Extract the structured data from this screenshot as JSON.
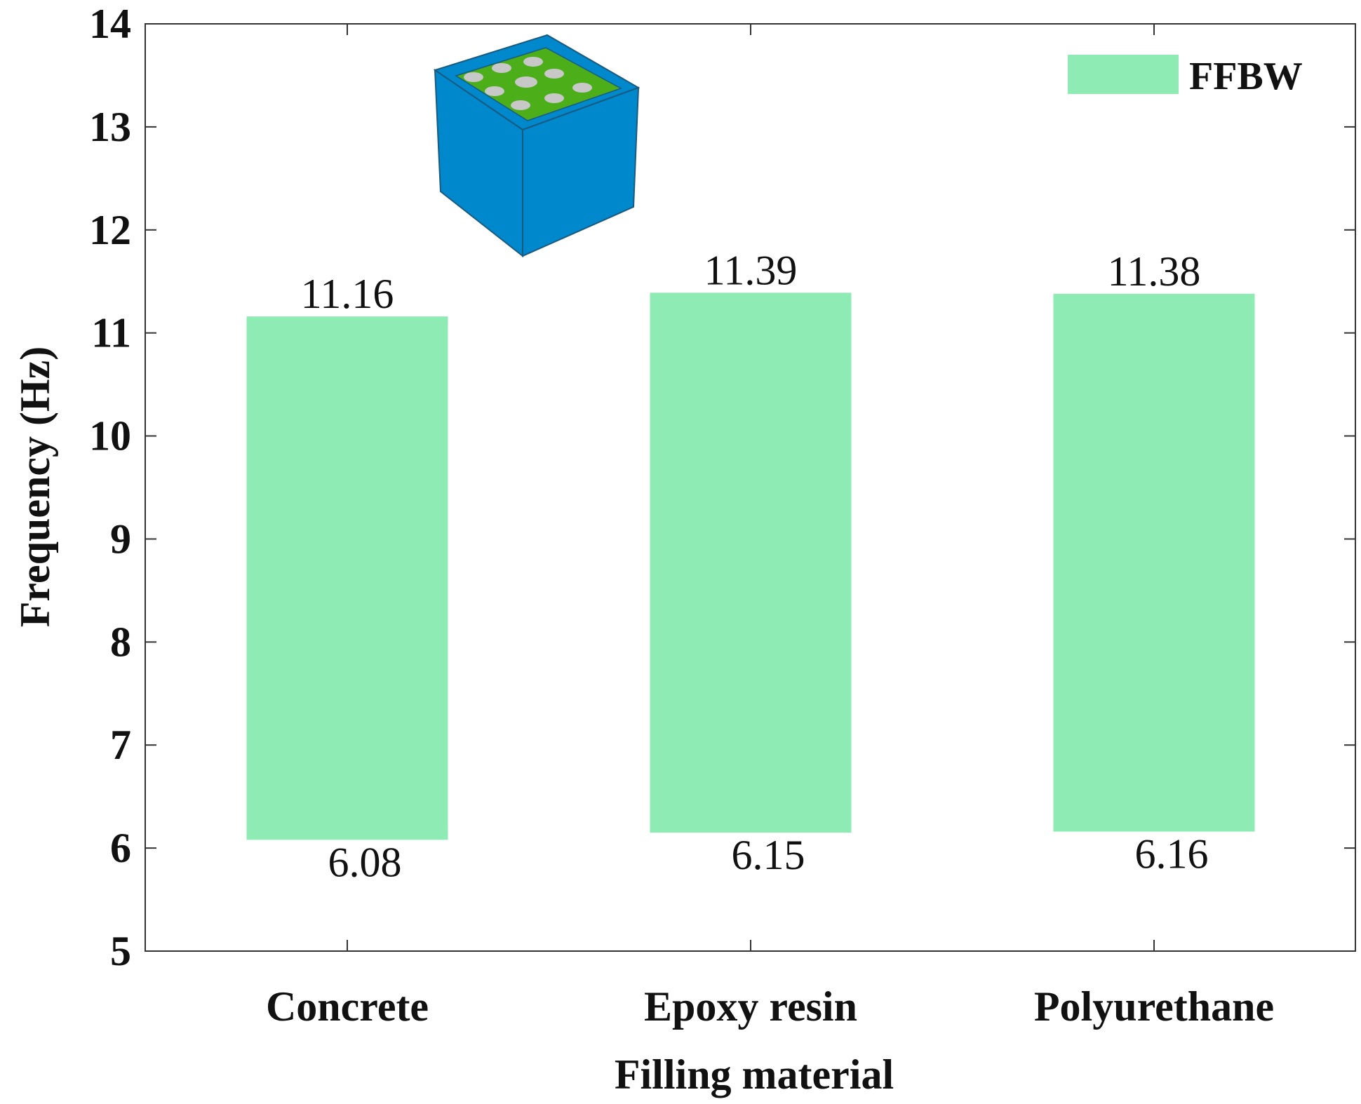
{
  "chart_data": {
    "type": "bar",
    "subtype": "floating-range",
    "xlabel": "Filling material",
    "ylabel": "Frequency (Hz)",
    "ylim": [
      5,
      14
    ],
    "yticks": [
      5,
      6,
      7,
      8,
      9,
      10,
      11,
      12,
      13,
      14
    ],
    "categories": [
      "Concrete",
      "Epoxy resin",
      "Polyurethane"
    ],
    "series": [
      {
        "name": "FFBW",
        "color": "#8EEBB4",
        "low": [
          6.08,
          6.15,
          6.16
        ],
        "high": [
          11.16,
          11.39,
          11.38
        ],
        "low_labels": [
          "6.08",
          "6.15",
          "6.16"
        ],
        "high_labels": [
          "11.16",
          "11.39",
          "11.38"
        ]
      }
    ],
    "legend": {
      "position": "top-right",
      "label": "FFBW"
    },
    "grid": false
  },
  "inset_icon": "cube-model-icon",
  "colors": {
    "cube_outer": "#0088CC",
    "cube_inner": "#4CAF1A",
    "cube_holes": "#C8C8C8",
    "axis": "#333333"
  }
}
